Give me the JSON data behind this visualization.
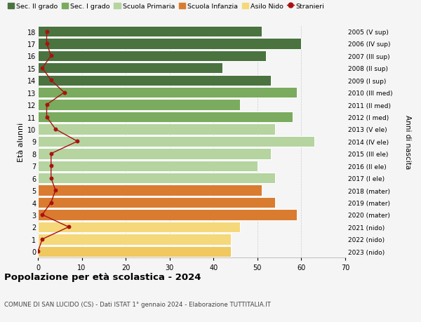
{
  "ages": [
    18,
    17,
    16,
    15,
    14,
    13,
    12,
    11,
    10,
    9,
    8,
    7,
    6,
    5,
    4,
    3,
    2,
    1,
    0
  ],
  "labels_right": [
    "2005 (V sup)",
    "2006 (IV sup)",
    "2007 (III sup)",
    "2008 (II sup)",
    "2009 (I sup)",
    "2010 (III med)",
    "2011 (II med)",
    "2012 (I med)",
    "2013 (V ele)",
    "2014 (IV ele)",
    "2015 (III ele)",
    "2016 (II ele)",
    "2017 (I ele)",
    "2018 (mater)",
    "2019 (mater)",
    "2020 (mater)",
    "2021 (nido)",
    "2022 (nido)",
    "2023 (nido)"
  ],
  "bar_values": [
    51,
    60,
    52,
    42,
    53,
    59,
    46,
    58,
    54,
    63,
    53,
    50,
    54,
    51,
    54,
    59,
    46,
    44,
    44
  ],
  "bar_colors": [
    "#4a7340",
    "#4a7340",
    "#4a7340",
    "#4a7340",
    "#4a7340",
    "#7aab5e",
    "#7aab5e",
    "#7aab5e",
    "#b5d4a0",
    "#b5d4a0",
    "#b5d4a0",
    "#b5d4a0",
    "#b5d4a0",
    "#d97c30",
    "#d97c30",
    "#d97c30",
    "#f5d87a",
    "#f5d87a",
    "#f0c860"
  ],
  "stranieri_values": [
    2,
    2,
    3,
    1,
    3,
    6,
    2,
    2,
    4,
    9,
    3,
    3,
    3,
    4,
    3,
    1,
    7,
    1,
    0
  ],
  "title": "Popolazione per età scolastica - 2024",
  "subtitle": "COMUNE DI SAN LUCIDO (CS) - Dati ISTAT 1° gennaio 2024 - Elaborazione TUTTITALIA.IT",
  "ylabel_left": "Età alunni",
  "ylabel_right": "Anni di nascita",
  "legend_items": [
    {
      "label": "Sec. II grado",
      "color": "#4a7340"
    },
    {
      "label": "Sec. I grado",
      "color": "#7aab5e"
    },
    {
      "label": "Scuola Primaria",
      "color": "#b5d4a0"
    },
    {
      "label": "Scuola Infanzia",
      "color": "#d97c30"
    },
    {
      "label": "Asilo Nido",
      "color": "#f5d87a"
    },
    {
      "label": "Stranieri",
      "color": "#aa1111"
    }
  ],
  "xlim": [
    0,
    70
  ],
  "ylim": [
    -0.5,
    18.5
  ],
  "background_color": "#f5f5f5",
  "xticks": [
    0,
    10,
    20,
    30,
    40,
    50,
    60,
    70
  ]
}
